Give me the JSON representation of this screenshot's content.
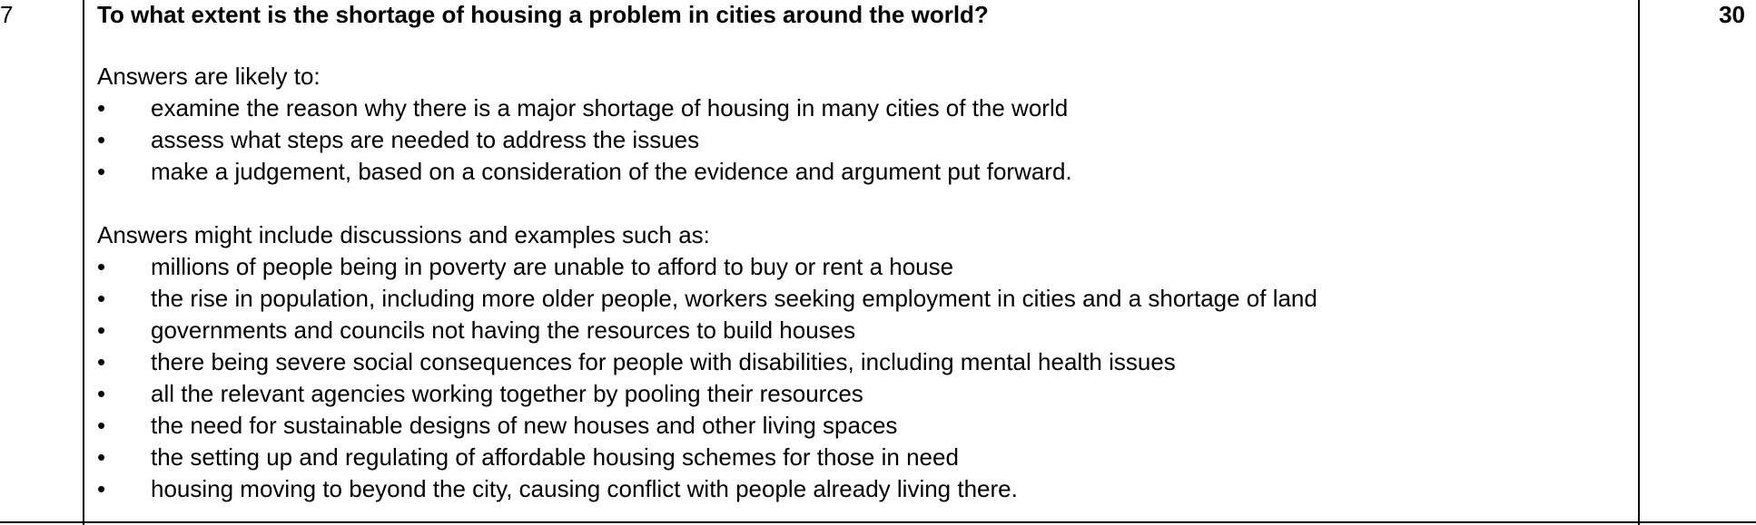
{
  "question": {
    "number": "7",
    "text": "To what extent is the shortage of housing a problem in cities around the world?",
    "marks": "30"
  },
  "likely": {
    "intro": "Answers are likely to:",
    "items": [
      "examine the reason why there is a major shortage of housing in many cities of the world",
      "assess what steps are needed to address the issues",
      "make a judgement, based on a consideration of the evidence and argument put forward."
    ]
  },
  "might_include": {
    "intro": "Answers might include discussions and examples such as:",
    "items": [
      "millions of people being in poverty are unable to afford to buy or rent a house",
      "the rise in population, including more older people, workers seeking employment in cities and a shortage of land",
      "governments and councils not having the resources to build houses",
      "there being severe social consequences for people with disabilities, including mental health issues",
      "all the relevant agencies working together by pooling their resources",
      "the need for sustainable designs of new houses and other living spaces",
      "the setting up and regulating of affordable housing schemes for those in need",
      "housing moving to beyond the city, causing conflict with people already living there."
    ]
  },
  "bullet_symbol": "•"
}
